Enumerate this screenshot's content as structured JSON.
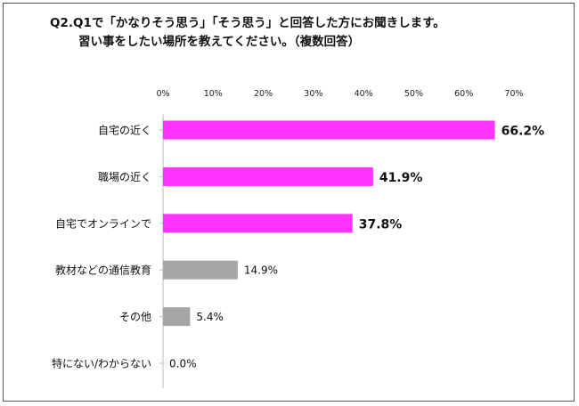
{
  "title": {
    "line1": "Q2.Q1で「かなりそう思う」「そう思う」と回答した方にお聞きします。",
    "line2": "習い事をしたい場所を教えてください。（複数回答）"
  },
  "chart_data": {
    "type": "bar",
    "orientation": "horizontal",
    "title": "Q2.Q1で「かなりそう思う」「そう思う」と回答した方にお聞きします。 習い事をしたい場所を教えてください。（複数回答）",
    "categories": [
      "自宅の近く",
      "職場の近く",
      "自宅でオンラインで",
      "教材などの通信教育",
      "その他",
      "特にない/わからない"
    ],
    "values": [
      66.2,
      41.9,
      37.8,
      14.9,
      5.4,
      0.0
    ],
    "value_labels": [
      "66.2%",
      "41.9%",
      "37.8%",
      "14.9%",
      "5.4%",
      "0.0%"
    ],
    "bar_colors": [
      "#ff33ff",
      "#ff33ff",
      "#ff33ff",
      "#a6a6a6",
      "#a6a6a6",
      "#a6a6a6"
    ],
    "bold_labels": [
      true,
      true,
      true,
      false,
      false,
      false
    ],
    "xlim": [
      0,
      70
    ],
    "x_ticks": [
      "0%",
      "10%",
      "20%",
      "30%",
      "40%",
      "50%",
      "60%",
      "70%"
    ],
    "grid": false,
    "xlabel": "",
    "ylabel": ""
  }
}
